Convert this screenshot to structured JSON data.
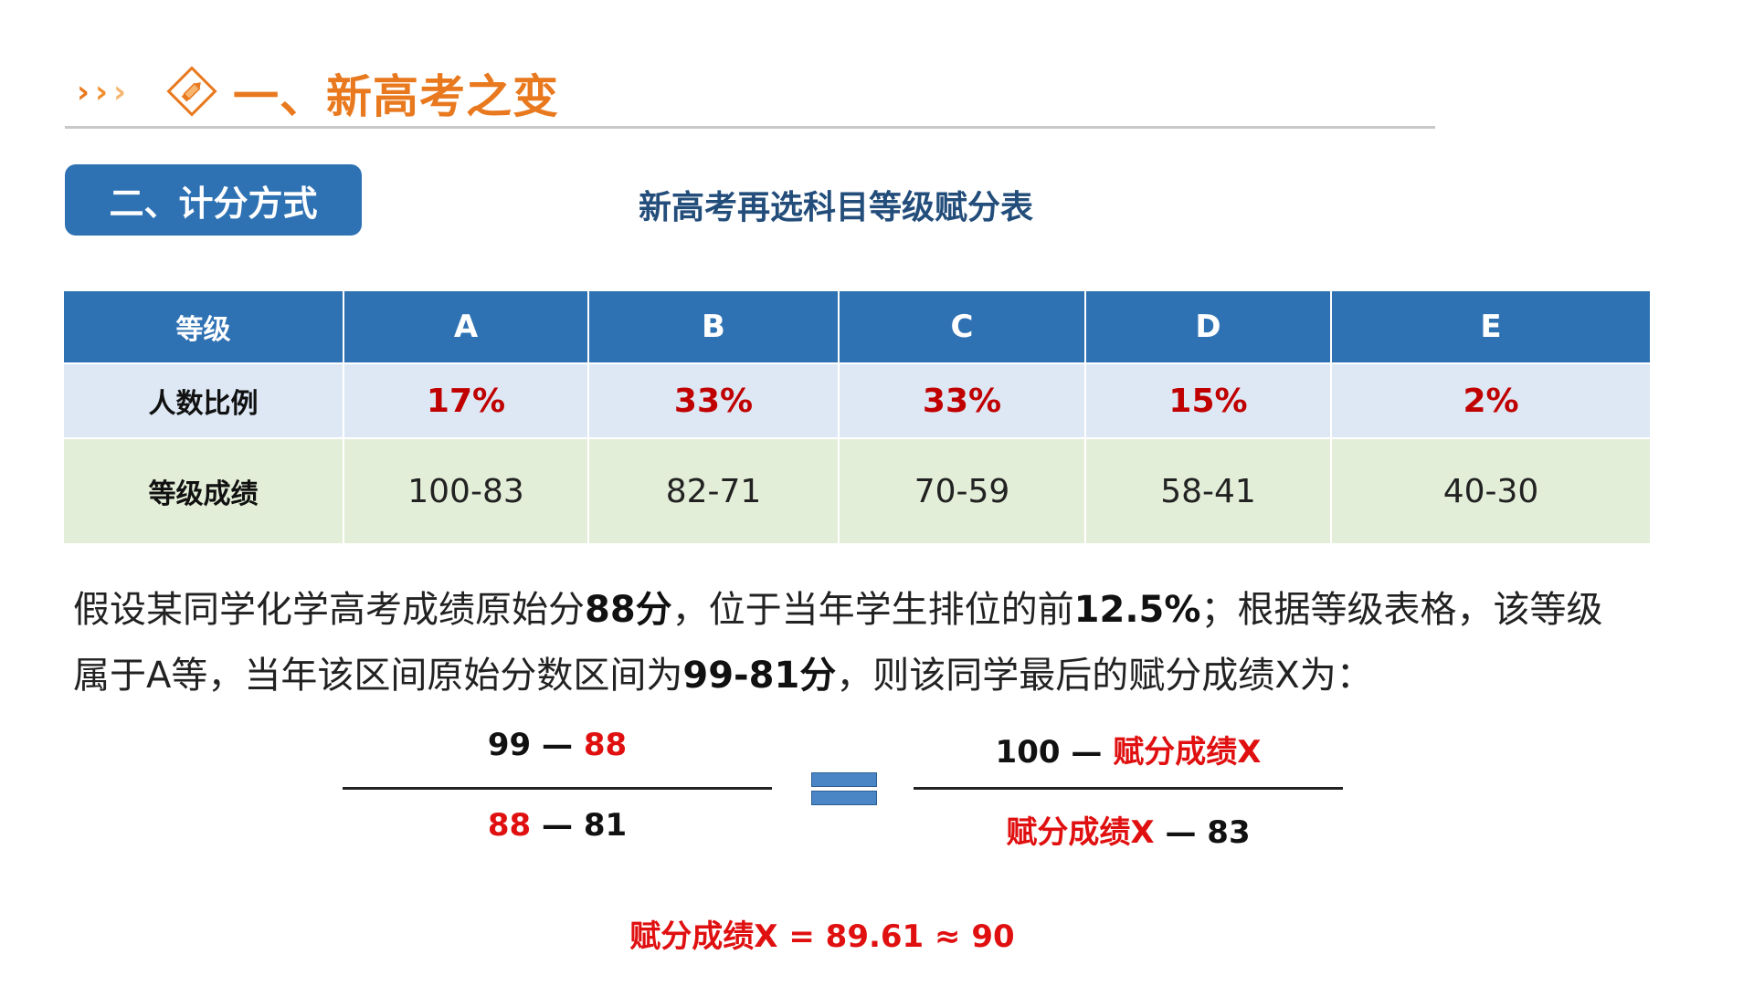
{
  "header": {
    "title": "一、新高考之变"
  },
  "section": {
    "tag": "二、计分方式",
    "caption": "新高考再选科目等级赋分表"
  },
  "table": {
    "header_label": "等级",
    "grades": [
      "A",
      "B",
      "C",
      "D",
      "E"
    ],
    "ratio_label": "人数比例",
    "ratios": [
      "17%",
      "33%",
      "33%",
      "15%",
      "2%"
    ],
    "score_label": "等级成绩",
    "scores": [
      "100-83",
      "82-71",
      "70-59",
      "58-41",
      "40-30"
    ]
  },
  "paragraph": {
    "p1": "假设某同学化学高考成绩原始分",
    "b1": "88分",
    "p2": "，位于当年学生排位的前",
    "b2": "12.5%",
    "p3": "；根据等级表格，该等级属于A等，当年该区间原始分数区间为",
    "b3": "99-81分",
    "p4": "，则该同学最后的赋分成绩X为："
  },
  "formula": {
    "left_num_a": "99",
    "dash": "—",
    "left_num_b": "88",
    "left_den_a": "88",
    "left_den_b": "81",
    "right_num_a": "100",
    "right_num_b": "赋分成绩X",
    "right_den_a": "赋分成绩X",
    "right_den_b": "83",
    "result": "赋分成绩X = 89.61 ≈ 90"
  },
  "colors": {
    "accent_orange": "#e8791e",
    "primary_blue": "#2f72b3",
    "highlight_red": "#e01010"
  },
  "icons": {
    "header_left": "triple-chevron-icon",
    "header_badge": "diamond-pencil-icon",
    "equals": "equals-sign-icon"
  }
}
